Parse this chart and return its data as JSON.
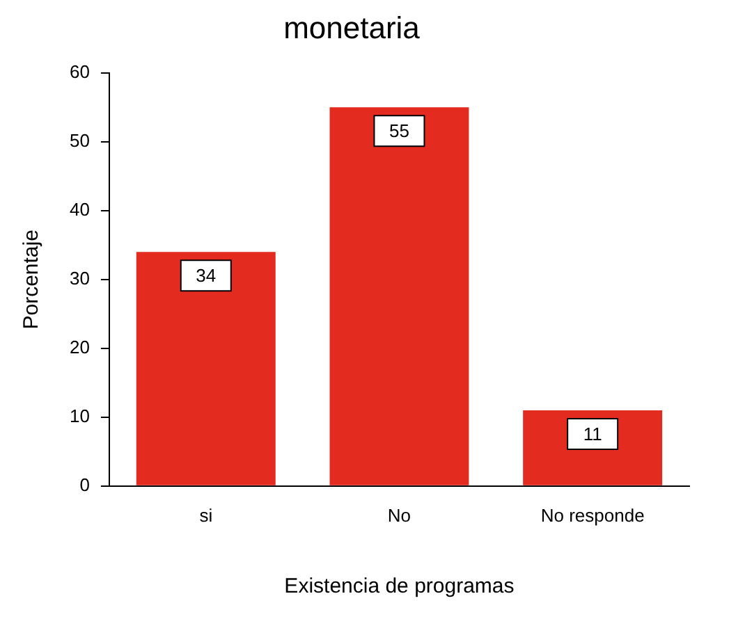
{
  "chart_data": {
    "type": "bar",
    "title": "monetaria",
    "xlabel": "Existencia de programas",
    "ylabel": "Porcentaje",
    "categories": [
      "si",
      "No",
      "No responde"
    ],
    "values": [
      34,
      55,
      11
    ],
    "color": "#e32b1f",
    "ylim": [
      0,
      60
    ],
    "yticks": [
      0,
      10,
      20,
      30,
      40,
      50,
      60
    ],
    "grid": false,
    "legend": false,
    "data_labels": true
  }
}
